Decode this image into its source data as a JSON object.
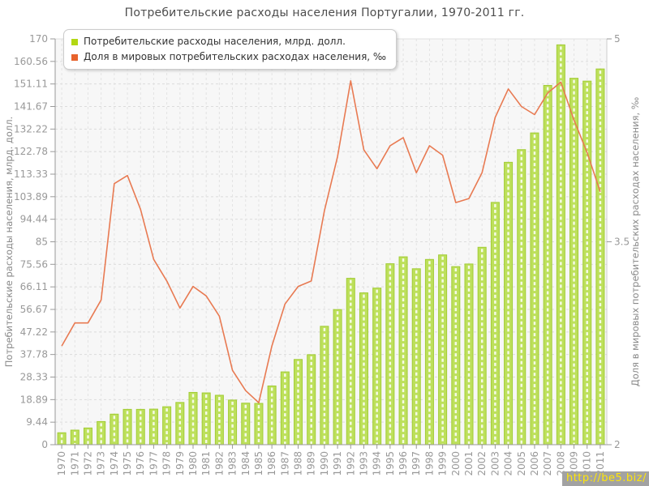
{
  "title": "Потребительские расходы населения Португалии, 1970-2011 гг.",
  "legend": {
    "items": [
      {
        "label": "Потребительские расходы населения, млрд. долл.",
        "color": "#b2d813"
      },
      {
        "label": "Доля в мировых потребительских расходах населения, ‰",
        "color": "#e8632c"
      }
    ]
  },
  "watermark": {
    "text": "http://be5.biz/",
    "bg": "#a2a2a2",
    "color": "#ffe607"
  },
  "chart_data": {
    "type": "combo",
    "title": "Потребительские расходы населения Португалии, 1970-2011 гг.",
    "categories": [
      "1970",
      "1971",
      "1972",
      "1973",
      "1974",
      "1975",
      "1976",
      "1977",
      "1978",
      "1979",
      "1980",
      "1981",
      "1982",
      "1983",
      "1984",
      "1985",
      "1986",
      "1987",
      "1988",
      "1989",
      "1990",
      "1991",
      "1992",
      "1993",
      "1994",
      "1995",
      "1996",
      "1997",
      "1998",
      "1999",
      "2000",
      "2001",
      "2002",
      "2003",
      "2004",
      "2005",
      "2006",
      "2007",
      "2008",
      "2009",
      "2010",
      "2011"
    ],
    "series": [
      {
        "name": "Потребительские расходы населения, млрд. долл.",
        "type": "bar",
        "yaxis": "left",
        "color": "#bde05b",
        "border_color": "#a2cc35",
        "values": [
          5.0,
          6.1,
          7.0,
          9.7,
          12.8,
          14.8,
          14.8,
          14.9,
          15.9,
          17.7,
          21.9,
          21.7,
          20.7,
          18.7,
          17.4,
          17.3,
          24.6,
          30.5,
          35.7,
          37.7,
          49.6,
          56.6,
          69.7,
          63.6,
          65.6,
          75.8,
          78.7,
          73.7,
          77.6,
          79.5,
          74.6,
          75.7,
          82.7,
          101.5,
          118.3,
          123.6,
          130.6,
          150.5,
          167.5,
          153.5,
          152.3,
          157.4
        ]
      },
      {
        "name": "Доля в мировых потребительских расходах населения, ‰",
        "type": "line",
        "yaxis": "right",
        "color": "#e87a52",
        "values": [
          2.73,
          2.9,
          2.9,
          3.07,
          3.93,
          3.99,
          3.74,
          3.37,
          3.21,
          3.01,
          3.17,
          3.1,
          2.95,
          2.55,
          2.4,
          2.31,
          2.73,
          3.04,
          3.17,
          3.21,
          3.73,
          4.13,
          4.69,
          4.18,
          4.04,
          4.21,
          4.27,
          4.01,
          4.21,
          4.14,
          3.79,
          3.82,
          4.01,
          4.42,
          4.63,
          4.5,
          4.44,
          4.6,
          4.68,
          4.4,
          4.16,
          3.87
        ]
      }
    ],
    "left_axis": {
      "title": "Потребительские расходы населения, млрд. долл.",
      "min": 0,
      "max": 170,
      "ticks": [
        0,
        9.44,
        18.89,
        28.33,
        37.78,
        47.22,
        56.67,
        66.11,
        75.56,
        85,
        94.44,
        103.89,
        113.33,
        122.78,
        132.22,
        141.67,
        151.11,
        160.56,
        170
      ]
    },
    "right_axis": {
      "title": "Доля в мировых потребительских расходах населения, ‰",
      "min": 2,
      "max": 5,
      "ticks": [
        2,
        3.5,
        5
      ]
    },
    "x_axis": {
      "labels_rotated": true
    },
    "grid": true,
    "legend_position": "top-left"
  }
}
